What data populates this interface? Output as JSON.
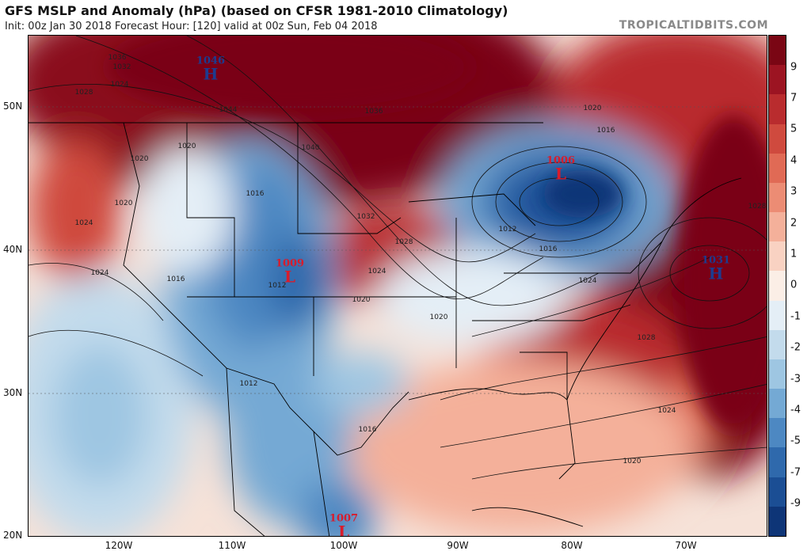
{
  "header": {
    "title": "GFS MSLP and Anomaly (hPa) (based on CFSR 1981-2010 Climatology)",
    "subtitle": "Init: 00z Jan 30 2018   Forecast Hour: [120]   valid at 00z Sun, Feb 04 2018",
    "brand": "TROPICALTIDBITS.COM"
  },
  "axes": {
    "latitudes": [
      "50N",
      "40N",
      "30N",
      "20N"
    ],
    "longitudes": [
      "120W",
      "110W",
      "100W",
      "90W",
      "80W",
      "70W"
    ]
  },
  "colorbar": {
    "labels": [
      "9",
      "7",
      "5",
      "4",
      "3",
      "2",
      "1",
      "0",
      "-1",
      "-2",
      "-3",
      "-4",
      "-5",
      "-7",
      "-9"
    ],
    "colors": [
      "#7a0614",
      "#9c1422",
      "#b92c2e",
      "#cf4a3e",
      "#e06a55",
      "#ec8c74",
      "#f4b09a",
      "#f9d2c2",
      "#fbeee6",
      "#e4eef6",
      "#c3dbec",
      "#9ec6e2",
      "#74a9d4",
      "#4d88c2",
      "#2f69ac",
      "#1b4e94",
      "#0e3577"
    ]
  },
  "systems": [
    {
      "type": "H",
      "value": "1046"
    },
    {
      "type": "L",
      "value": "1006"
    },
    {
      "type": "L",
      "value": "1009"
    },
    {
      "type": "H",
      "value": "1031"
    },
    {
      "type": "L",
      "value": "1007"
    }
  ],
  "isobar_labels": [
    "1036",
    "1032",
    "1028",
    "1024",
    "1044",
    "1040",
    "1036",
    "1032",
    "1028",
    "1024",
    "1020",
    "1020",
    "1020",
    "1024",
    "1016",
    "1012",
    "1016",
    "1012",
    "1016",
    "1020",
    "1024",
    "1028",
    "1024",
    "1020",
    "1020",
    "1016",
    "1012",
    "1020",
    "1024",
    "1028",
    "1016",
    "1020"
  ]
}
